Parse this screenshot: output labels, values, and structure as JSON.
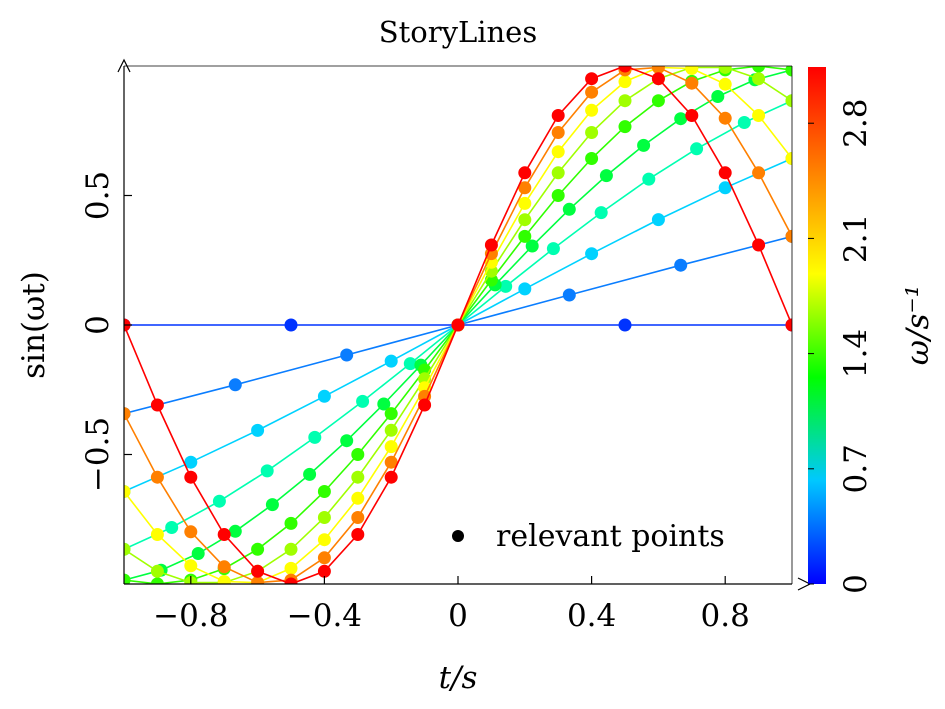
{
  "chart_data": {
    "type": "line",
    "title": "StoryLines",
    "xlabel": "t/s",
    "ylabel": "sin(ωt)",
    "xlim": [
      -1,
      1
    ],
    "ylim": [
      -1,
      1
    ],
    "xticks": [
      -0.8,
      -0.4,
      0,
      0.4,
      0.8
    ],
    "xtick_labels": [
      "−0.8",
      "−0.4",
      "0",
      "0.4",
      "0.8"
    ],
    "yticks": [
      -0.5,
      0,
      0.5
    ],
    "ytick_labels": [
      "−0.5",
      "0",
      "0.5"
    ],
    "grid": false,
    "legend": {
      "position": "bottom-right",
      "entries": [
        "relevant points"
      ]
    },
    "colorbar": {
      "label": "ω/s⁻¹",
      "range": [
        0,
        3.14159
      ],
      "ticks": [
        0,
        0.7,
        1.4,
        2.1,
        2.8
      ],
      "tick_labels": [
        "0",
        "0.7",
        "1.4",
        "2.1",
        "2.8"
      ],
      "colormap": [
        "#0000ff",
        "#00c8ff",
        "#00ff00",
        "#ffff00",
        "#ff8000",
        "#ff0000"
      ]
    },
    "function": "y = sin(ω·t)",
    "series": [
      {
        "omega": 0.0,
        "color": "#0033ff",
        "x": [
          -1,
          -0.5,
          0,
          0.5,
          1
        ],
        "y": [
          0,
          0,
          0,
          0,
          0
        ]
      },
      {
        "omega": 0.3491,
        "color": "#0a7dff",
        "x": [
          -1,
          -0.6667,
          -0.3333,
          0,
          0.3333,
          0.6667,
          1
        ],
        "y": [
          -0.342,
          -0.2308,
          -0.1159,
          0,
          0.1159,
          0.2308,
          0.342
        ]
      },
      {
        "omega": 0.6981,
        "color": "#00d2ff",
        "x": [
          -1,
          -0.8,
          -0.6,
          -0.4,
          -0.2,
          0,
          0.2,
          0.4,
          0.6,
          0.8,
          1
        ],
        "y": [
          -0.6428,
          -0.5299,
          -0.4068,
          -0.2753,
          -0.1392,
          0,
          0.1392,
          0.2753,
          0.4068,
          0.5299,
          0.6428
        ]
      },
      {
        "omega": 1.0472,
        "color": "#00ffb0",
        "x": [
          -1,
          -0.8571,
          -0.7143,
          -0.5714,
          -0.4286,
          -0.2857,
          -0.1429,
          0,
          0.1429,
          0.2857,
          0.4286,
          0.5714,
          0.7143,
          0.8571,
          1
        ],
        "y": [
          -0.866,
          -0.7818,
          -0.6802,
          -0.5633,
          -0.4339,
          -0.2948,
          -0.149,
          0,
          0.149,
          0.2948,
          0.4339,
          0.5633,
          0.6802,
          0.7818,
          0.866
        ]
      },
      {
        "omega": 1.3963,
        "color": "#00ff40",
        "x": [
          -1,
          -0.8889,
          -0.7778,
          -0.6667,
          -0.5556,
          -0.4444,
          -0.3333,
          -0.2222,
          -0.1111,
          0,
          0.1111,
          0.2222,
          0.3333,
          0.4444,
          0.5556,
          0.6667,
          0.7778,
          0.8889,
          1
        ],
        "y": [
          -0.9848,
          -0.9468,
          -0.8823,
          -0.7966,
          -0.6934,
          -0.5768,
          -0.4466,
          -0.3052,
          -0.1547,
          0,
          0.1547,
          0.3052,
          0.4466,
          0.5768,
          0.6934,
          0.7966,
          0.8823,
          0.9468,
          0.9848
        ]
      },
      {
        "omega": 1.7453,
        "color": "#30ff00",
        "x": [
          -1,
          -0.9,
          -0.8,
          -0.7,
          -0.6,
          -0.5,
          -0.4,
          -0.3,
          -0.2,
          -0.1,
          0,
          0.1,
          0.2,
          0.3,
          0.4,
          0.5,
          0.6,
          0.7,
          0.8,
          0.9,
          1
        ],
        "y": [
          -0.9848,
          -0.9998,
          -0.9848,
          -0.9405,
          -0.866,
          -0.766,
          -0.6428,
          -0.5,
          -0.342,
          -0.1736,
          0,
          0.1736,
          0.342,
          0.5,
          0.6428,
          0.766,
          0.866,
          0.9405,
          0.9848,
          0.9998,
          0.9848
        ]
      },
      {
        "omega": 2.0944,
        "color": "#a0ff00",
        "x": [
          -1,
          -0.9,
          -0.8,
          -0.7,
          -0.6,
          -0.5,
          -0.4,
          -0.3,
          -0.2,
          -0.1,
          0,
          0.1,
          0.2,
          0.3,
          0.4,
          0.5,
          0.6,
          0.7,
          0.8,
          0.9,
          1
        ],
        "y": [
          -0.866,
          -0.9511,
          -0.9945,
          -0.9945,
          -0.9511,
          -0.866,
          -0.7431,
          -0.5878,
          -0.4067,
          -0.2079,
          0,
          0.2079,
          0.4067,
          0.5878,
          0.7431,
          0.866,
          0.9511,
          0.9945,
          0.9945,
          0.9511,
          0.866
        ]
      },
      {
        "omega": 2.4435,
        "color": "#ffff00",
        "x": [
          -1,
          -0.9,
          -0.8,
          -0.7,
          -0.6,
          -0.5,
          -0.4,
          -0.3,
          -0.2,
          -0.1,
          0,
          0.1,
          0.2,
          0.3,
          0.4,
          0.5,
          0.6,
          0.7,
          0.8,
          0.9,
          1
        ],
        "y": [
          -0.6428,
          -0.809,
          -0.9298,
          -0.9903,
          -0.9945,
          -0.9397,
          -0.829,
          -0.6691,
          -0.4695,
          -0.2419,
          0,
          0.2419,
          0.4695,
          0.6691,
          0.829,
          0.9397,
          0.9945,
          0.9903,
          0.9298,
          0.809,
          0.6428
        ]
      },
      {
        "omega": 2.7925,
        "color": "#ff8000",
        "x": [
          -1,
          -0.9,
          -0.8,
          -0.7,
          -0.6,
          -0.5,
          -0.4,
          -0.3,
          -0.2,
          -0.1,
          0,
          0.1,
          0.2,
          0.3,
          0.4,
          0.5,
          0.6,
          0.7,
          0.8,
          0.9,
          1
        ],
        "y": [
          -0.342,
          -0.5878,
          -0.7986,
          -0.9336,
          -0.9945,
          -0.9848,
          -0.8988,
          -0.7431,
          -0.5299,
          -0.2756,
          0,
          0.2756,
          0.5299,
          0.7431,
          0.8988,
          0.9848,
          0.9945,
          0.9336,
          0.7986,
          0.5878,
          0.342
        ]
      },
      {
        "omega": 3.1416,
        "color": "#ff0000",
        "x": [
          -1,
          -0.9,
          -0.8,
          -0.7,
          -0.6,
          -0.5,
          -0.4,
          -0.3,
          -0.2,
          -0.1,
          0,
          0.1,
          0.2,
          0.3,
          0.4,
          0.5,
          0.6,
          0.7,
          0.8,
          0.9,
          1
        ],
        "y": [
          0,
          -0.309,
          -0.5878,
          -0.809,
          -0.9511,
          -1,
          -0.9511,
          -0.809,
          -0.5878,
          -0.309,
          0,
          0.309,
          0.5878,
          0.809,
          0.9511,
          1,
          0.9511,
          0.809,
          0.5878,
          0.309,
          0
        ]
      }
    ]
  }
}
